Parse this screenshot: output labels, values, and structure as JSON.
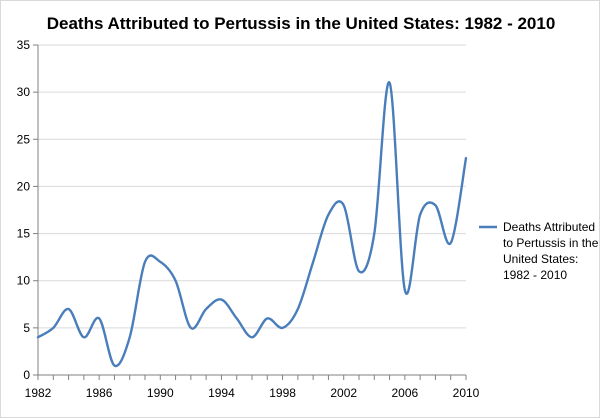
{
  "chart_data": {
    "type": "line",
    "title": "Deaths Attributed to Pertussis in the United States: 1982 - 2010",
    "xlabel": "",
    "ylabel": "",
    "x": [
      1982,
      1983,
      1984,
      1985,
      1986,
      1987,
      1988,
      1989,
      1990,
      1991,
      1992,
      1993,
      1994,
      1995,
      1996,
      1997,
      1998,
      1999,
      2000,
      2001,
      2002,
      2003,
      2004,
      2005,
      2006,
      2007,
      2008,
      2009,
      2010
    ],
    "series": [
      {
        "name": "Deaths Attributed to Pertussis in the United States: 1982 - 2010",
        "values": [
          4,
          5,
          7,
          4,
          6,
          1,
          4,
          12,
          12,
          10,
          5,
          7,
          8,
          6,
          4,
          6,
          5,
          7,
          12,
          17,
          18,
          11,
          15,
          31,
          9,
          17,
          18,
          14,
          23
        ],
        "color": "#4a7ebb"
      }
    ],
    "xlim": [
      1982,
      2010
    ],
    "ylim": [
      0,
      35
    ],
    "x_ticks": [
      "1982",
      "1986",
      "1990",
      "1994",
      "1998",
      "2002",
      "2006",
      "2010"
    ],
    "y_ticks": [
      "0",
      "5",
      "10",
      "15",
      "20",
      "25",
      "30",
      "35"
    ],
    "grid": true,
    "legend_position": "right",
    "legend_label_lines": [
      "Deaths Attributed",
      "to Pertussis in the",
      "United States:",
      "1982 - 2010"
    ]
  }
}
